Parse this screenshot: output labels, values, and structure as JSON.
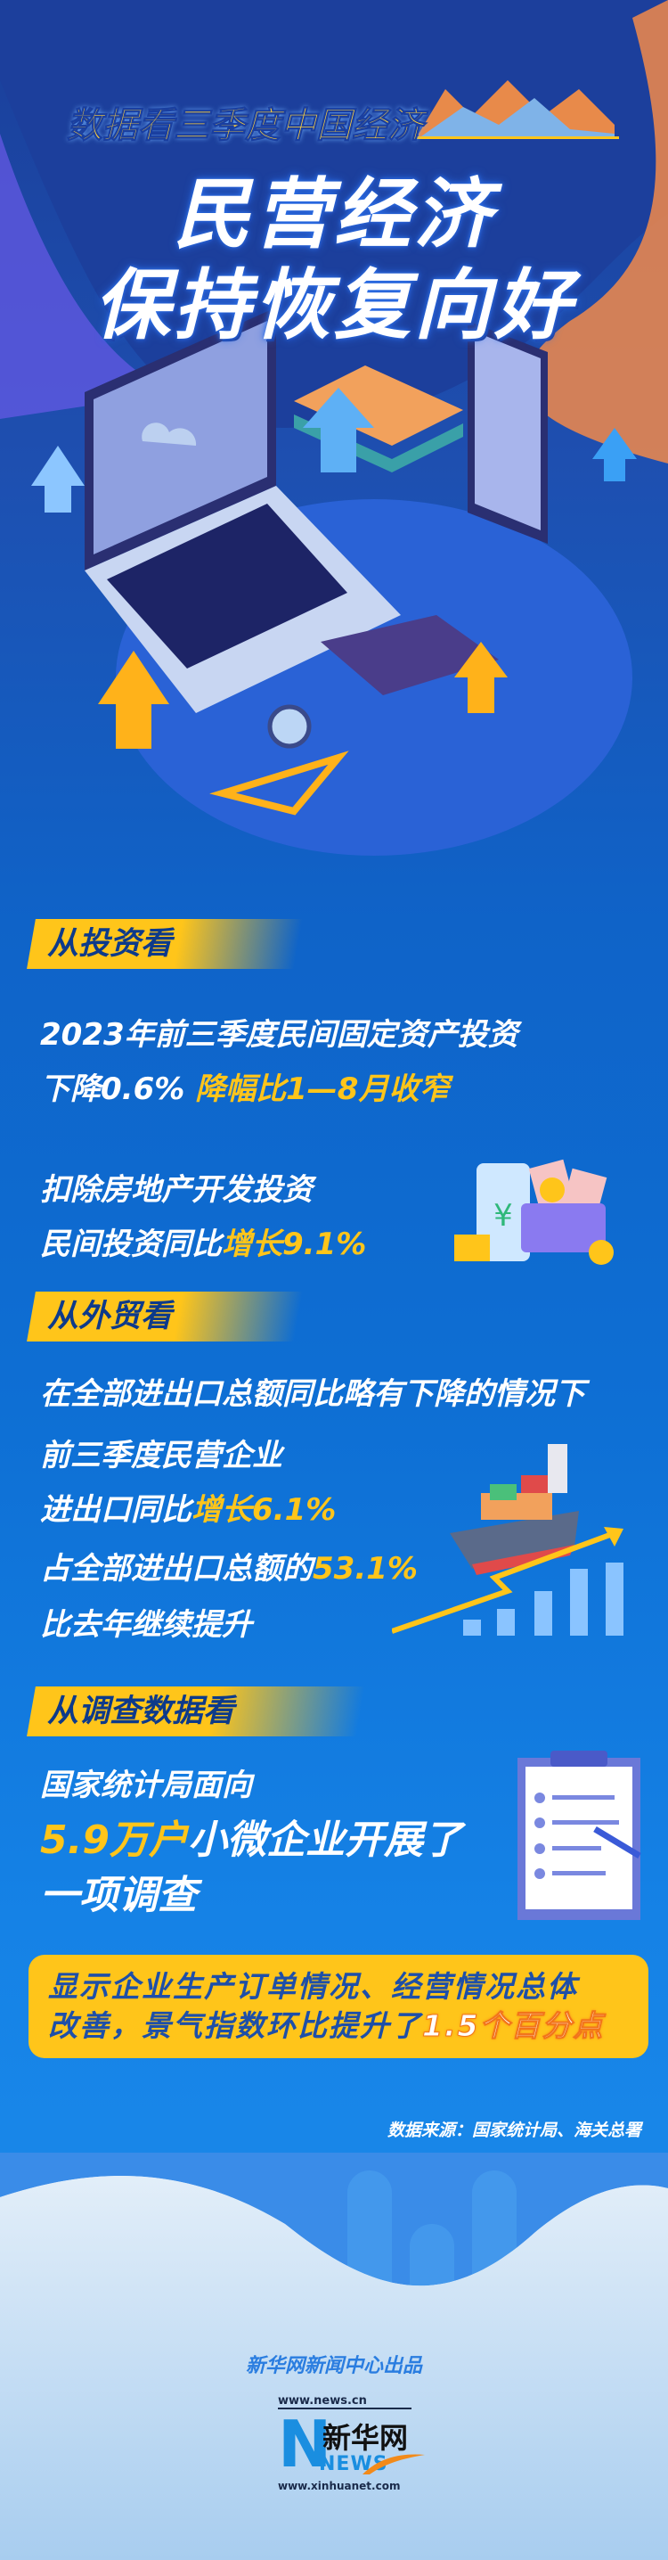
{
  "header": {
    "subtitle": "数据看三季度中国经济",
    "title_line1": "民营经济",
    "title_line2": "保持恢复向好"
  },
  "sections": [
    {
      "heading": "从投资看",
      "line1": "2023年前三季度民间固定资产投资",
      "line2_white": "下降0.6% ",
      "line2_yellow": "降幅比1—8月收窄",
      "line3": "扣除房地产开发投资",
      "line4_white": "民间投资同比",
      "line4_yellow": "增长9.1%"
    },
    {
      "heading": "从外贸看",
      "line1": "在全部进出口总额同比略有下降的情况下",
      "line2": "前三季度民营企业",
      "line3_white": "进出口同比",
      "line3_yellow": "增长6.1%",
      "line4_white": "占全部进出口总额的",
      "line4_yellow": "53.1%",
      "line5": "比去年继续提升"
    },
    {
      "heading": "从调查数据看",
      "line1": "国家统计局面向",
      "line2_yellow": "5.9万户",
      "line2_white": "小微企业开展了",
      "line3": "一项调查"
    }
  ],
  "highlight": {
    "text1": "显示企业生产订单情况、经营情况总体",
    "text2": "改善，景气指数环比提升了",
    "text2_accent": "1.5个百分点"
  },
  "source": "数据来源：国家统计局、海关总署",
  "footer": {
    "producer": "新华网新闻中心出品",
    "logo_url_top": "www.news.cn",
    "logo_name": "新华网",
    "logo_letters": "NEWS",
    "logo_url_bottom": "www.xinhuanet.com"
  },
  "colors": {
    "accent_yellow": "#ffc51a",
    "background_blue": "#0e6fd4",
    "accent_orange": "#f2741a"
  }
}
